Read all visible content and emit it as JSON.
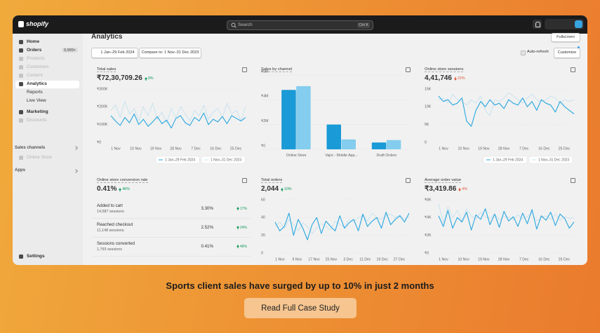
{
  "app": {
    "logo": "shopify",
    "search": "Search",
    "shortcut": "Ctrl K"
  },
  "sidebar": {
    "items": [
      {
        "label": "Home"
      },
      {
        "label": "Orders",
        "badge": "9,999+"
      },
      {
        "label": "Products",
        "disabled": true
      },
      {
        "label": "Customers",
        "disabled": true
      },
      {
        "label": "Content",
        "disabled": true
      },
      {
        "label": "Analytics",
        "active": true
      },
      {
        "label": "Reports",
        "sub": true
      },
      {
        "label": "Live View",
        "sub": true
      },
      {
        "label": "Marketing"
      },
      {
        "label": "Discounts",
        "disabled": true
      }
    ],
    "sales_channels": "Sales channels",
    "online_store": "Online Store",
    "apps": "Apps",
    "settings": "Settings"
  },
  "header": {
    "title": "Analytics",
    "fullscreen": "Fullscreen",
    "date_range": "1 Jan–29 Feb 2024",
    "compare": "Compare to: 1 Nov–31 Dec 2023",
    "auto_refresh": "Auto-refresh",
    "customize": "Customize"
  },
  "cards": [
    {
      "title": "Total sales",
      "value": "₹72,30,709.26",
      "change": "9%",
      "direction": "up",
      "chart": {
        "type": "line",
        "ylim": [
          0,
          300000
        ],
        "yticks": [
          {
            "value": 0,
            "label": "₹0"
          },
          {
            "value": 100000,
            "label": "₹100K"
          },
          {
            "value": 200000,
            "label": "₹200K"
          },
          {
            "value": 300000,
            "label": "₹300K"
          }
        ],
        "x_labels": [
          "1 Nov",
          "10 Nov",
          "19 Nov",
          "28 Nov",
          "7 Dec",
          "16 Dec",
          "25 Dec"
        ],
        "grid": true,
        "legend": "bottom-right",
        "series": [
          {
            "name": "1 Nov–31 Dec 2023",
            "color": "#a9d7ee",
            "dashed": true,
            "values": [
              180000,
              210000,
              140000,
              230000,
              160000,
              190000,
              120000,
              200000,
              150000,
              220000,
              130000,
              170000,
              110000,
              190000,
              140000,
              200000,
              160000,
              120000,
              180000,
              150000,
              210000,
              130000,
              170000,
              190000,
              140000,
              220000,
              160000,
              180000,
              120000,
              200000
            ]
          },
          {
            "name": "1 Jan–29 Feb 2024",
            "color": "#29a7df",
            "values": [
              150000,
              120000,
              95000,
              140000,
              110000,
              160000,
              100000,
              130000,
              90000,
              115000,
              145000,
              105000,
              125000,
              80000,
              135000,
              150000,
              110000,
              95000,
              140000,
              120000,
              165000,
              100000,
              130000,
              115000,
              145000,
              105000,
              150000,
              135000,
              120000,
              140000
            ]
          }
        ]
      }
    },
    {
      "title": "Sales by channel",
      "chart": {
        "type": "bar",
        "ylim": [
          0,
          6000000
        ],
        "yticks": [
          {
            "value": 0,
            "label": "₹0"
          },
          {
            "value": 2000000,
            "label": "₹2M"
          },
          {
            "value": 4000000,
            "label": "₹4M"
          },
          {
            "value": 6000000,
            "label": "₹6M"
          }
        ],
        "categories": [
          "Online Store",
          "Vajro - Mobile App...",
          "Draft Orders"
        ],
        "grid": true,
        "series": [
          {
            "color": "#1a9ad6",
            "values": [
              4800000,
              2000000,
              550000
            ]
          },
          {
            "color": "#84cdee",
            "values": [
              5100000,
              800000,
              750000
            ]
          }
        ]
      }
    },
    {
      "title": "Online store sessions",
      "value": "4,41,746",
      "change": "22%",
      "direction": "down",
      "chart": {
        "type": "line",
        "ylim": [
          0,
          15000
        ],
        "yticks": [
          0,
          {
            "value": 5000,
            "label": "5K"
          },
          {
            "value": 10000,
            "label": "10K"
          },
          {
            "value": 15000,
            "label": "15K"
          }
        ],
        "x_labels": [
          "1 Nov",
          "10 Nov",
          "19 Nov",
          "28 Nov",
          "7 Dec",
          "16 Dec",
          "25 Dec"
        ],
        "grid": true,
        "legend": "bottom-right",
        "series": [
          {
            "name": "1 Nov–31 Dec 2023",
            "color": "#a9d7ee",
            "dashed": true,
            "values": [
              12000,
              12500,
              11000,
              13500,
              12000,
              11500,
              10500,
              12000,
              11000,
              13000,
              9000,
              7500,
              12000,
              11500,
              12500,
              14000,
              13000,
              12000,
              11000,
              12500,
              13500,
              12000,
              11500,
              12000,
              13000,
              12500,
              11000,
              12000,
              11500,
              12000
            ]
          },
          {
            "name": "1 Jan–29 Feb 2024",
            "color": "#29a7df",
            "values": [
              13000,
              11500,
              12000,
              10500,
              11000,
              12500,
              6000,
              4500,
              9000,
              11500,
              10000,
              12000,
              10500,
              11000,
              9500,
              12000,
              11000,
              10500,
              12500,
              10000,
              11500,
              9000,
              12000,
              11000,
              10500,
              8500,
              11500,
              10000,
              9000,
              8000
            ]
          }
        ]
      }
    },
    {
      "title": "Online store conversion rate",
      "value": "0.41%",
      "change": "46%",
      "direction": "up",
      "funnel": [
        {
          "label": "Added to cart",
          "sessions": "14,587 sessions",
          "rate": "3.30%",
          "change": "17%"
        },
        {
          "label": "Reached checkout",
          "sessions": "11,148 sessions",
          "rate": "2.52%",
          "change": "24%"
        },
        {
          "label": "Sessions converted",
          "sessions": "1,793 sessions",
          "rate": "0.41%",
          "change": "46%"
        }
      ]
    },
    {
      "title": "Total orders",
      "value": "2,044",
      "change": "10%",
      "direction": "up",
      "chart": {
        "type": "line",
        "ylim": [
          0,
          60
        ],
        "yticks": [
          0,
          20,
          40,
          60
        ],
        "x_labels": [
          "1 Nov",
          "9 Nov",
          "17 Nov",
          "25 Nov",
          "3 Dec",
          "11 Dec",
          "19 Dec",
          "27 Dec"
        ],
        "grid": true,
        "series": [
          {
            "color": "#a9d7ee",
            "dashed": true,
            "values": [
              30,
              35,
              28,
              38,
              32,
              25,
              34,
              30,
              22,
              28,
              33,
              30,
              26,
              36,
              32,
              30,
              38,
              35,
              40,
              42,
              36,
              45,
              40,
              38,
              42,
              44,
              40,
              43,
              38,
              41
            ]
          },
          {
            "color": "#29a7df",
            "values": [
              35,
              25,
              30,
              45,
              20,
              38,
              28,
              15,
              32,
              40,
              22,
              36,
              30,
              25,
              42,
              28,
              34,
              38,
              25,
              44,
              30,
              36,
              40,
              28,
              46,
              32,
              38,
              42,
              35,
              45
            ]
          }
        ]
      }
    },
    {
      "title": "Average order value",
      "value": "₹3,419.86",
      "change": "4%",
      "direction": "down",
      "chart": {
        "type": "line",
        "ylim": [
          0,
          6000
        ],
        "yticks": [
          {
            "value": 0,
            "label": "₹0"
          },
          {
            "value": 2000,
            "label": "₹2K"
          },
          {
            "value": 4000,
            "label": "₹4K"
          },
          {
            "value": 6000,
            "label": "₹6K"
          }
        ],
        "x_labels": [
          "1 Nov",
          "10 Nov",
          "19 Nov",
          "28 Nov",
          "7 Dec",
          "16 Dec",
          "25 Dec"
        ],
        "grid": true,
        "series": [
          {
            "color": "#a9d7ee",
            "dashed": true,
            "values": [
              5500,
              3500,
              5200,
              4000,
              4800,
              3600,
              5000,
              4200,
              3800,
              4600,
              4100,
              3900,
              4400,
              3700,
              4200,
              4000,
              3800,
              4300,
              3900,
              4100,
              4500,
              3600,
              4000,
              4200,
              3800,
              4400,
              3700,
              4100,
              3900,
              4000
            ]
          },
          {
            "color": "#29a7df",
            "values": [
              4200,
              3000,
              4800,
              2800,
              4000,
              3500,
              4600,
              2600,
              4300,
              3800,
              5000,
              3200,
              4400,
              2900,
              4700,
              3600,
              4100,
              3000,
              4500,
              3300,
              4900,
              2700,
              4200,
              3700,
              4600,
              3100,
              4400,
              3900,
              2800,
              3500
            ]
          }
        ]
      }
    }
  ],
  "banner": {
    "text": "Sports client sales have surged by up to 10% in just 2 months",
    "button": "Read Full Case Study"
  }
}
